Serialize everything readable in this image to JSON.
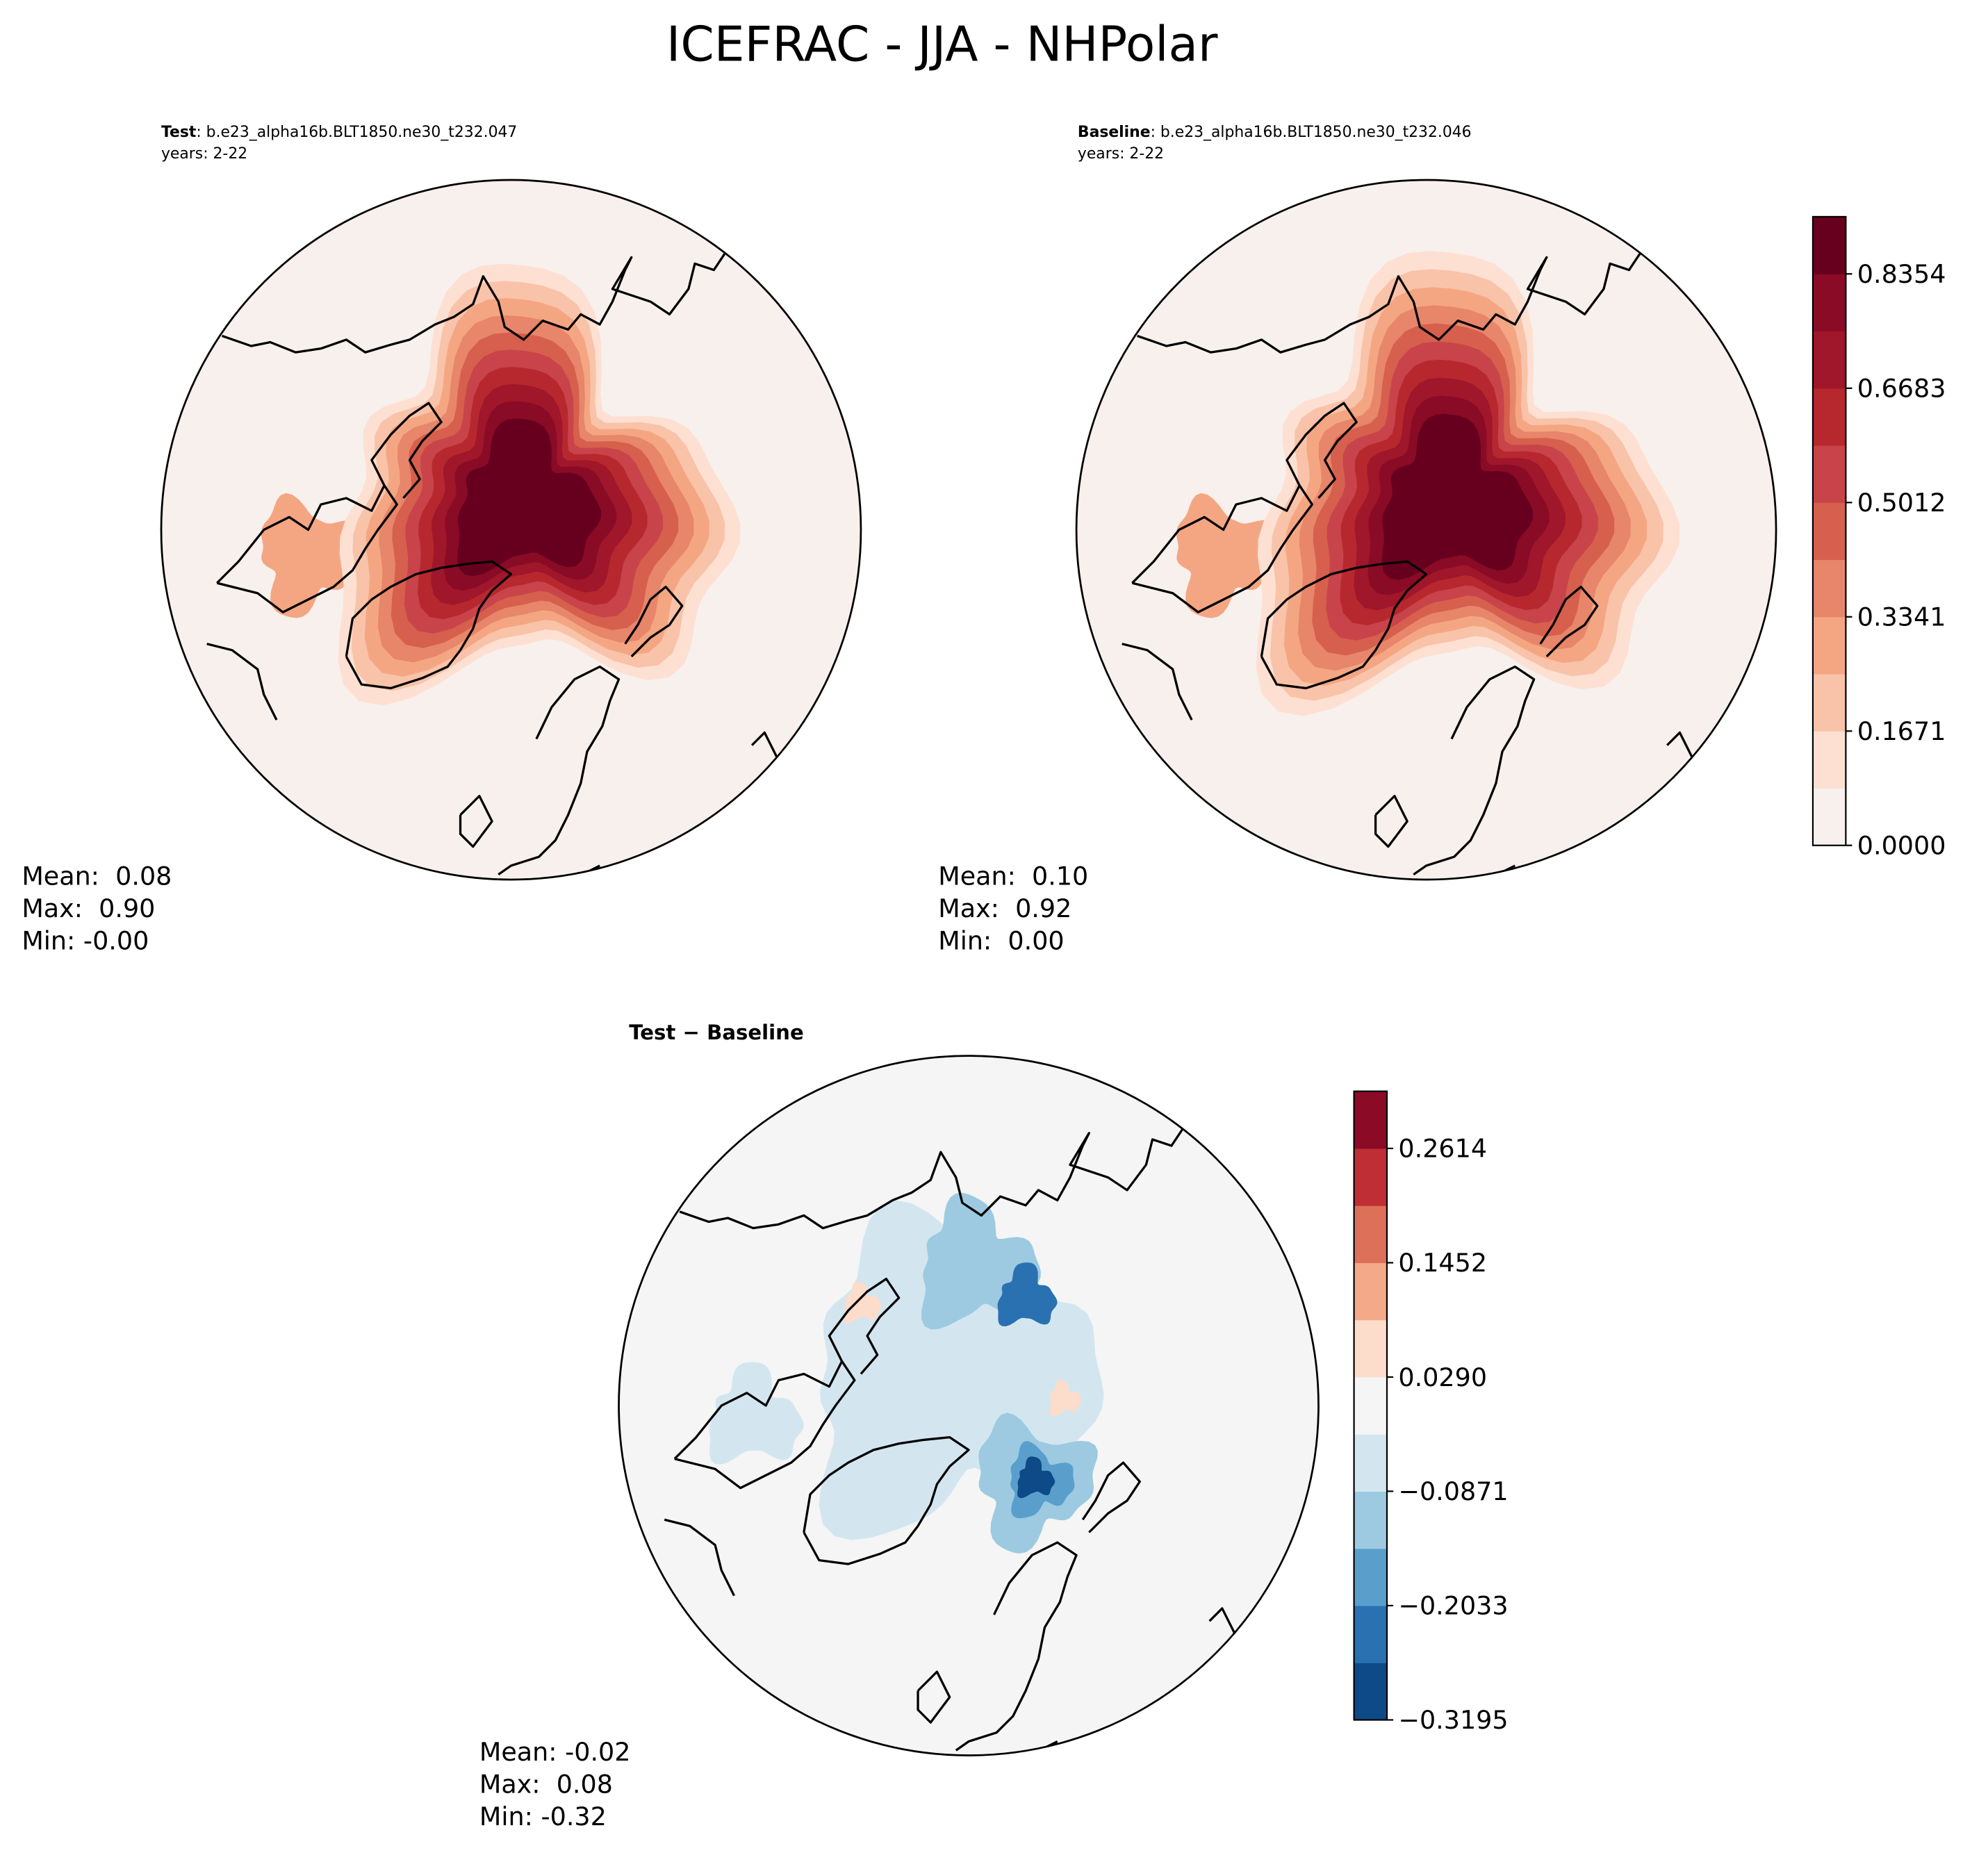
{
  "title": "ICEFRAC - JJA - NHPolar",
  "panels": [
    {
      "name": "Test",
      "case": ": b.e23_alpha16b.BLT1850.ne30_t232.047",
      "years": "years: 2-22",
      "stats": [
        "Mean:  0.08",
        "Max:  0.90",
        "Min: -0.00"
      ]
    },
    {
      "name": "Baseline",
      "case": ": b.e23_alpha16b.BLT1850.ne30_t232.046",
      "years": "years: 2-22",
      "stats": [
        "Mean:  0.10",
        "Max:  0.92",
        "Min:  0.00"
      ]
    },
    {
      "name": "Test − Baseline",
      "stats": [
        "Mean: -0.02",
        "Max:  0.08",
        "Min: -0.32"
      ]
    }
  ],
  "colorbars": [
    {
      "lim": [
        0,
        0.919
      ],
      "ticks": [
        {
          "value": 0,
          "label": "0.0000"
        },
        0.1671,
        0.3341,
        0.5012,
        0.6683,
        0.8354
      ],
      "colors": [
        "#f7f0ec",
        "#fde0d2",
        "#f9c3a9",
        "#f4a683",
        "#e7866a",
        "#d6604d",
        "#c8444a",
        "#b7282e",
        "#a0162a",
        "#8a0b25",
        "#67001f"
      ]
    },
    {
      "lim": [
        -0.3195,
        0.3195
      ],
      "ticks": [
        {
          "value": -0.3195,
          "label": "−0.3195"
        },
        {
          "value": -0.2033,
          "label": "−0.2033"
        },
        {
          "value": -0.0871,
          "label": "−0.0871"
        },
        {
          "value": 0.029,
          "label": "0.0290"
        },
        0.1452,
        0.2614
      ],
      "colors": [
        "#0d4a87",
        "#2a71b2",
        "#5a9fcc",
        "#9dcae1",
        "#d3e6f0",
        "#f5f5f5",
        "#fcdccb",
        "#f4a989",
        "#dd7059",
        "#be2e34",
        "#8b0a25"
      ]
    }
  ]
}
